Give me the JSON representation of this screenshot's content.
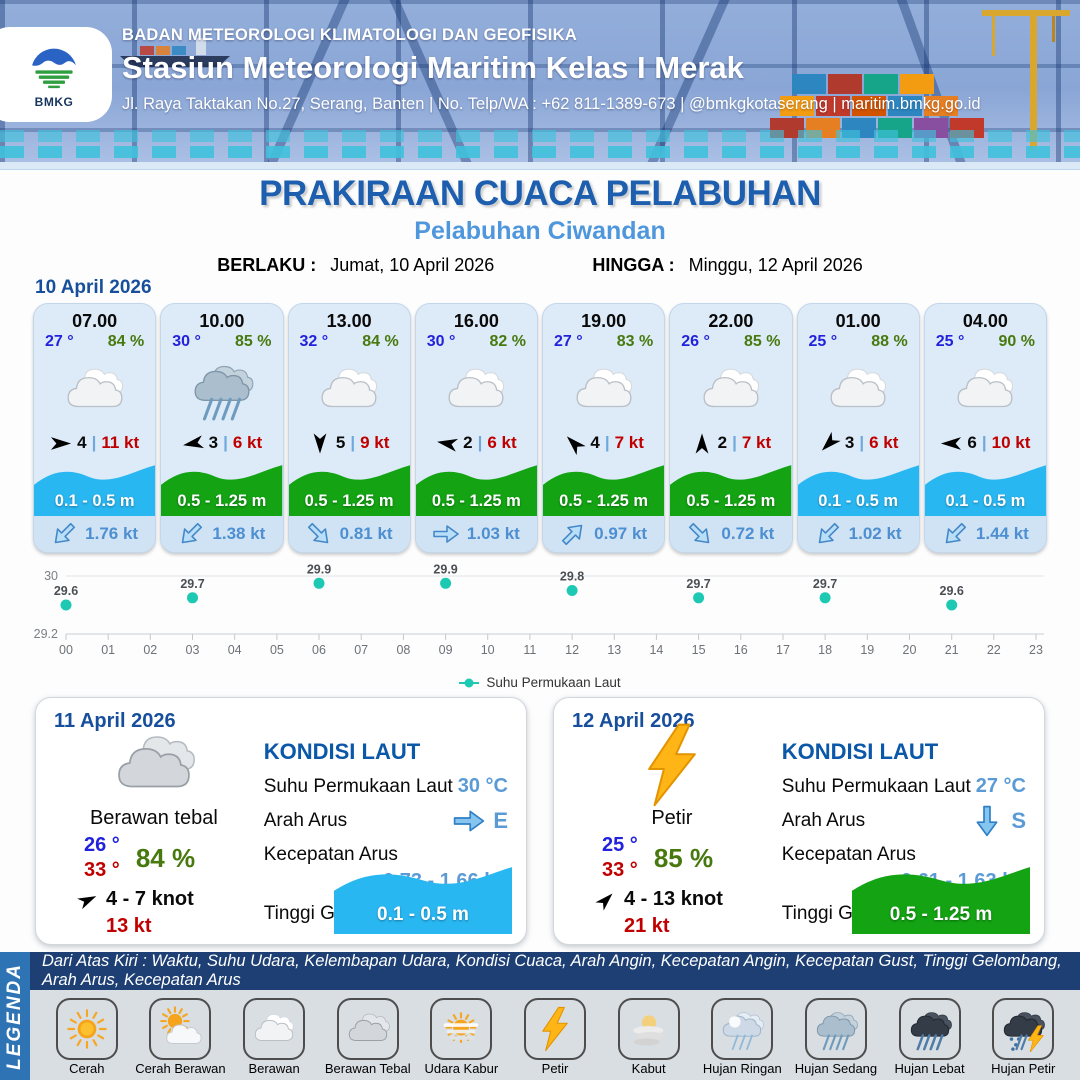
{
  "header": {
    "agency": "BADAN METEOROLOGI KLIMATOLOGI DAN GEOFISIKA",
    "station": "Stasiun Meteorologi Maritim Kelas I Merak",
    "contact": "Jl. Raya Taktakan No.27, Serang, Banten | No. Telp/WA : +62 811-1389-673 | @bmkgkotaserang | maritim.bmkg.go.id",
    "logo_text": "BMKG"
  },
  "title": {
    "main": "PRAKIRAAN CUACA PELABUHAN",
    "subtitle": "Pelabuhan Ciwandan",
    "valid_from_label": "BERLAKU :",
    "valid_from": "Jumat, 10 April 2026",
    "valid_to_label": "HINGGA :",
    "valid_to": "Minggu, 12 April 2026"
  },
  "forecast": {
    "date": "10 April 2026",
    "sep": "|",
    "cards": [
      {
        "time": "07.00",
        "temp": "27 °",
        "humidity": "84 %",
        "icon": "berawan",
        "wind_dir_deg": 0,
        "wind_force": "4",
        "wind_speed": "11 kt",
        "wave": "0.1 - 0.5 m",
        "wave_color": "#29b7f2",
        "current_dir_deg": 135,
        "current_speed": "1.76 kt"
      },
      {
        "time": "10.00",
        "temp": "30 °",
        "humidity": "85 %",
        "icon": "hujan-sedang",
        "wind_dir_deg": 170,
        "wind_force": "3",
        "wind_speed": "6 kt",
        "wave": "0.5 - 1.25 m",
        "wave_color": "#13a313",
        "current_dir_deg": 135,
        "current_speed": "1.38 kt"
      },
      {
        "time": "13.00",
        "temp": "32 °",
        "humidity": "84 %",
        "icon": "berawan",
        "wind_dir_deg": 90,
        "wind_force": "5",
        "wind_speed": "9 kt",
        "wave": "0.5 - 1.25 m",
        "wave_color": "#13a313",
        "current_dir_deg": 45,
        "current_speed": "0.81 kt"
      },
      {
        "time": "16.00",
        "temp": "30 °",
        "humidity": "82 %",
        "icon": "berawan",
        "wind_dir_deg": 190,
        "wind_force": "2",
        "wind_speed": "6 kt",
        "wave": "0.5 - 1.25 m",
        "wave_color": "#13a313",
        "current_dir_deg": 0,
        "current_speed": "1.03 kt"
      },
      {
        "time": "19.00",
        "temp": "27 °",
        "humidity": "83 %",
        "icon": "berawan",
        "wind_dir_deg": 225,
        "wind_force": "4",
        "wind_speed": "7 kt",
        "wave": "0.5 - 1.25 m",
        "wave_color": "#13a313",
        "current_dir_deg": 315,
        "current_speed": "0.97 kt"
      },
      {
        "time": "22.00",
        "temp": "26 °",
        "humidity": "85 %",
        "icon": "berawan",
        "wind_dir_deg": 270,
        "wind_force": "2",
        "wind_speed": "7 kt",
        "wave": "0.5 - 1.25 m",
        "wave_color": "#13a313",
        "current_dir_deg": 45,
        "current_speed": "0.72 kt"
      },
      {
        "time": "01.00",
        "temp": "25 °",
        "humidity": "88 %",
        "icon": "berawan",
        "wind_dir_deg": 135,
        "wind_force": "3",
        "wind_speed": "6 kt",
        "wave": "0.1 - 0.5 m",
        "wave_color": "#29b7f2",
        "current_dir_deg": 135,
        "current_speed": "1.02 kt"
      },
      {
        "time": "04.00",
        "temp": "25 °",
        "humidity": "90 %",
        "icon": "berawan",
        "wind_dir_deg": 180,
        "wind_force": "6",
        "wind_speed": "10 kt",
        "wave": "0.1 - 0.5 m",
        "wave_color": "#29b7f2",
        "current_dir_deg": 135,
        "current_speed": "1.44 kt"
      }
    ]
  },
  "chart_data": {
    "type": "scatter",
    "legend": "Suhu Permukaan Laut",
    "legend_position": "bottom",
    "grid": true,
    "x_ticks": [
      "00",
      "01",
      "02",
      "03",
      "04",
      "05",
      "06",
      "07",
      "08",
      "09",
      "10",
      "11",
      "12",
      "13",
      "14",
      "15",
      "16",
      "17",
      "18",
      "19",
      "20",
      "21",
      "22",
      "23"
    ],
    "points": {
      "x": [
        0,
        3,
        6,
        9,
        12,
        15,
        18,
        21
      ],
      "y": [
        29.6,
        29.7,
        29.9,
        29.9,
        29.8,
        29.7,
        29.7,
        29.6
      ],
      "labels": [
        "29.6",
        "29.7",
        "29.9",
        "29.9",
        "29.8",
        "29.7",
        "29.7",
        "29.6"
      ]
    },
    "ylim": [
      29.2,
      30
    ],
    "y_ticks": [
      {
        "v": 30,
        "label": "30"
      },
      {
        "v": 29.2,
        "label": "29.2"
      }
    ],
    "point_color": "#1ec9b3"
  },
  "panels": [
    {
      "date": "11 April 2026",
      "icon": "berawan-tebal",
      "condition": "Berawan tebal",
      "temp_min": "26 °",
      "temp_max": "33 °",
      "humidity": "84 %",
      "wind_dir_deg": 335,
      "wind_range": "4  - 7 knot",
      "gust": "13 kt",
      "sea": {
        "title": "KONDISI LAUT",
        "sst_label": "Suhu Permukaan Laut",
        "sst": "30 °C",
        "current_dir_label": "Arah Arus",
        "current_dir": "E",
        "current_dir_deg": 0,
        "current_speed_label": "Kecepatan Arus",
        "current_speed": "0.73 - 1.66 kt",
        "wave_label": "Tinggi Gelombang",
        "wave": "0.1 - 0.5 m",
        "wave_color": "#29b7f2"
      }
    },
    {
      "date": "12 April 2026",
      "icon": "petir",
      "condition": "Petir",
      "temp_min": "25 °",
      "temp_max": "33 °",
      "humidity": "85 %",
      "wind_dir_deg": 315,
      "wind_range": "4  - 13 knot",
      "gust": "21 kt",
      "sea": {
        "title": "KONDISI LAUT",
        "sst_label": "Suhu Permukaan Laut",
        "sst": "27 °C",
        "current_dir_label": "Arah Arus",
        "current_dir": "S",
        "current_dir_deg": 90,
        "current_speed_label": "Kecepatan Arus",
        "current_speed": "0.61  - 1.63 kt",
        "wave_label": "Tinggi Gelombang",
        "wave": "0.5 - 1.25 m",
        "wave_color": "#13a313"
      }
    }
  ],
  "legend": {
    "label": "LEGENDA",
    "info": "Dari Atas Kiri : Waktu, Suhu Udara, Kelembapan Udara, Kondisi Cuaca, Arah Angin, Kecepatan Angin, Kecepatan Gust, Tinggi Gelombang, Arah Arus, Kecepatan Arus",
    "items": [
      {
        "label": "Cerah",
        "icon": "cerah"
      },
      {
        "label": "Cerah Berawan",
        "icon": "cerah-berawan"
      },
      {
        "label": "Berawan",
        "icon": "berawan"
      },
      {
        "label": "Berawan Tebal",
        "icon": "berawan-tebal"
      },
      {
        "label": "Udara Kabur",
        "icon": "udara-kabur"
      },
      {
        "label": "Petir",
        "icon": "petir"
      },
      {
        "label": "Kabut",
        "icon": "kabut"
      },
      {
        "label": "Hujan Ringan",
        "icon": "hujan-ringan"
      },
      {
        "label": "Hujan Sedang",
        "icon": "hujan-sedang"
      },
      {
        "label": "Hujan Lebat",
        "icon": "hujan-lebat"
      },
      {
        "label": "Hujan Petir",
        "icon": "hujan-petir"
      }
    ]
  },
  "colors": {
    "accent_blue": "#1d5fae",
    "subtitle_blue": "#4e97dd",
    "date_blue": "#174f9c",
    "temp_blue": "#2222dd",
    "humidity_green": "#47790e",
    "speed_red": "#c00000",
    "current_blue": "#4d8fd1",
    "wave_blue": "#29b7f2",
    "wave_green": "#13a313",
    "chart_teal": "#1ec9b3",
    "legend_strip_blue": "#2e74b5",
    "legend_bar_navy": "#1d3f73"
  }
}
